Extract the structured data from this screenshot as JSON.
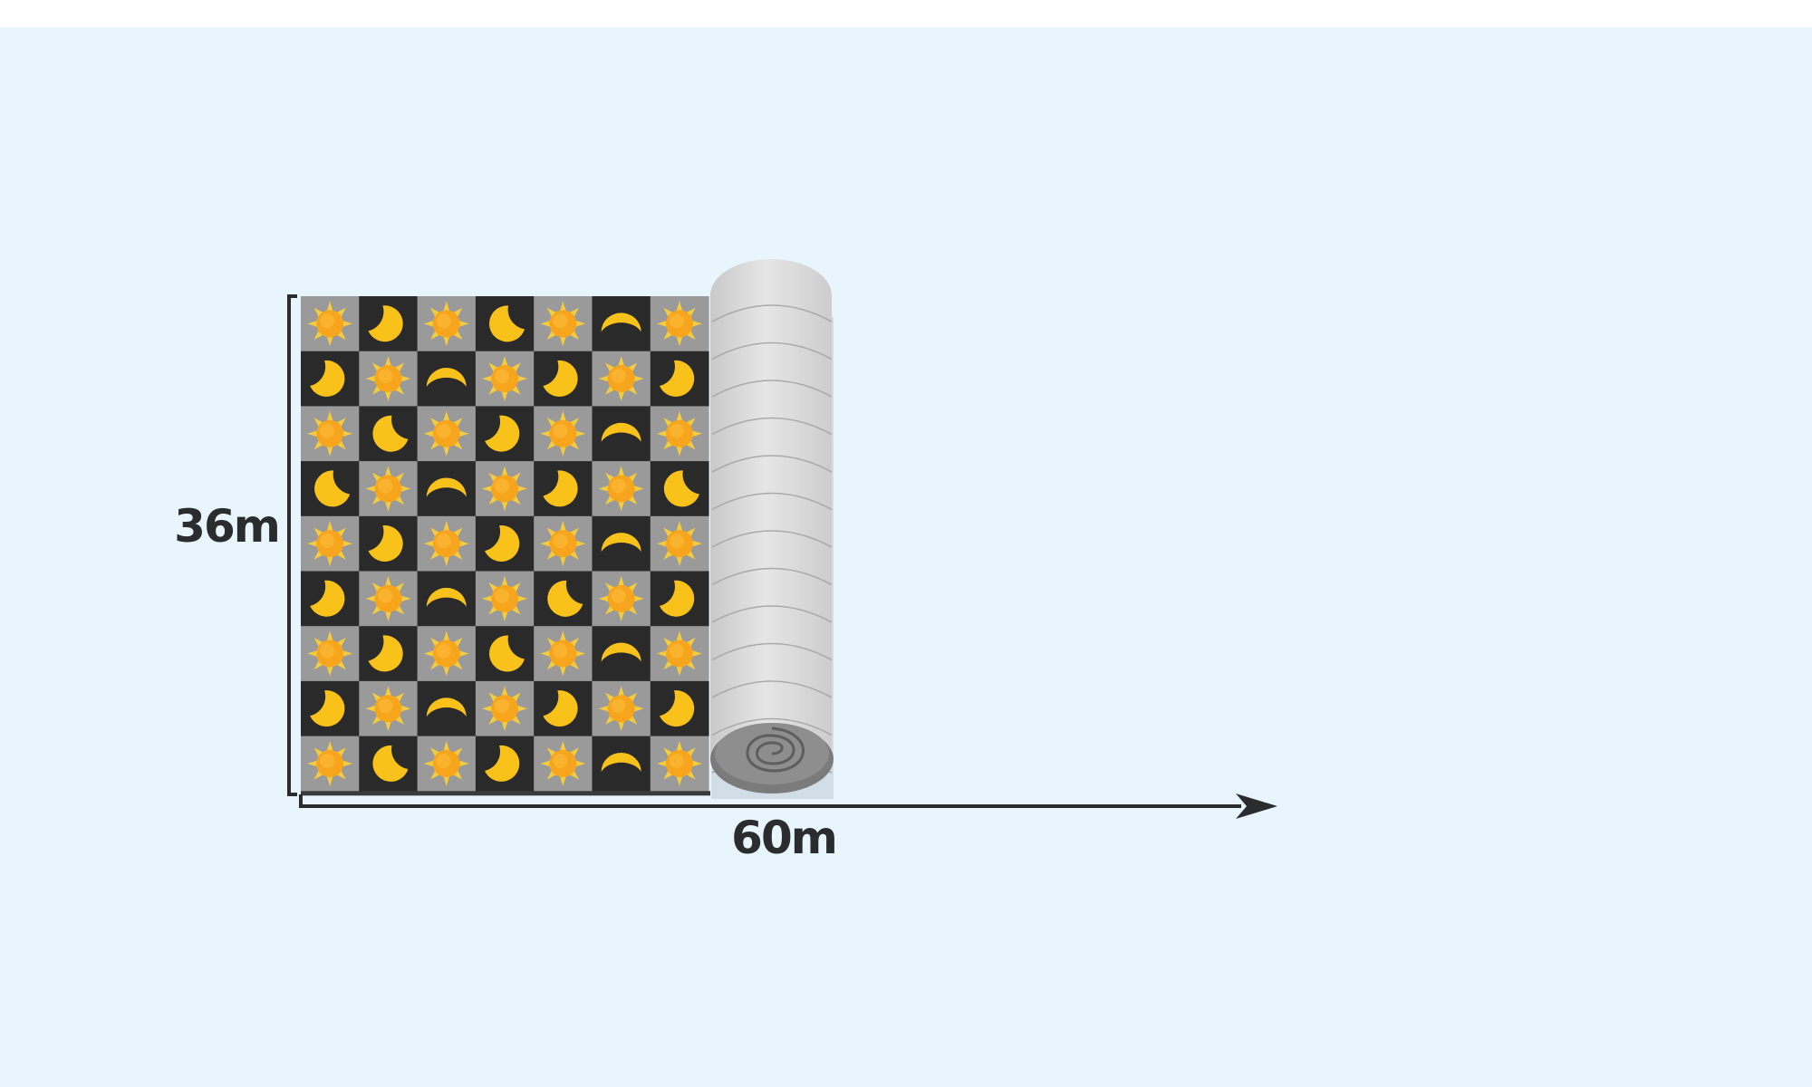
{
  "labels": {
    "height": "36m",
    "width": "60m"
  },
  "pattern": {
    "rows": 9,
    "cols": 7,
    "tile_types": [
      "sun-icon",
      "crescent-moon-icon",
      "arc-moon-icon"
    ],
    "colors": {
      "light_tile": "#9a9a9a",
      "dark_tile": "#2a2a2a",
      "sun": "#f7a51c",
      "sun_rays": "#f3cc3f",
      "moon": "#f9c21a",
      "roll": "#d6d6d6",
      "arrow": "#2b2c2e"
    }
  }
}
